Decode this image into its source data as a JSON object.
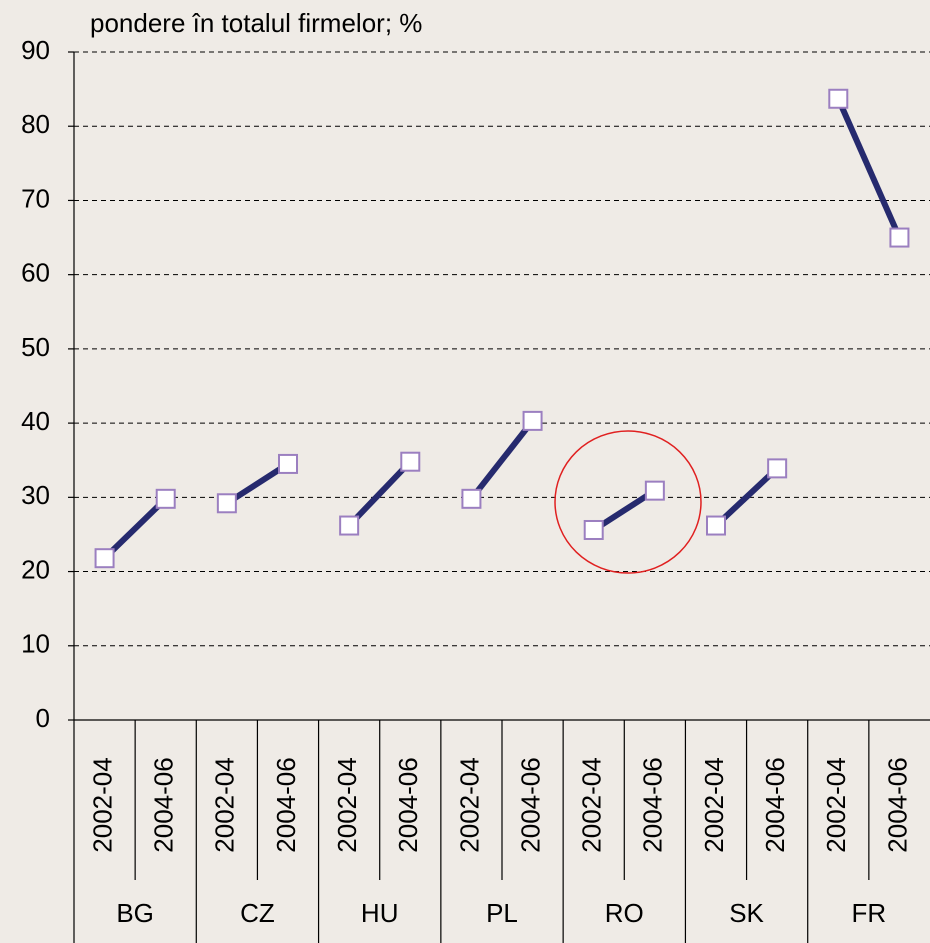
{
  "chart_data": {
    "type": "line",
    "title": "pondere în totalul firmelor; %",
    "categories": [
      "2002-04",
      "2004-06",
      "2002-04",
      "2004-06",
      "2002-04",
      "2004-06",
      "2002-04",
      "2004-06",
      "2002-04",
      "2004-06",
      "2002-04",
      "2004-06",
      "2002-04",
      "2004-06"
    ],
    "groups": [
      "BG",
      "CZ",
      "HU",
      "PL",
      "RO",
      "SK",
      "FR"
    ],
    "values": [
      21.8,
      29.8,
      29.2,
      34.5,
      26.2,
      34.8,
      29.8,
      40.3,
      25.6,
      30.9,
      26.2,
      33.9,
      83.7,
      65.0
    ],
    "color": "#262a6e",
    "marker_color": "#9b7fc0",
    "ylim": [
      0,
      90
    ],
    "yticks": [
      0,
      10,
      20,
      30,
      40,
      50,
      60,
      70,
      80,
      90
    ],
    "grid": true
  }
}
